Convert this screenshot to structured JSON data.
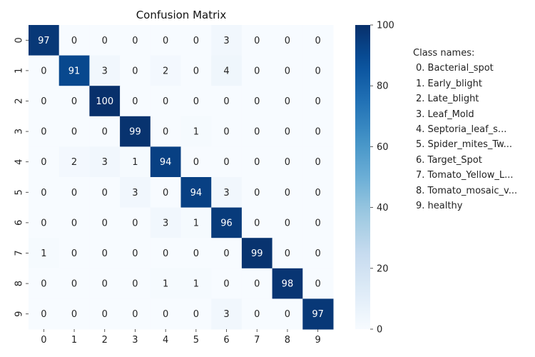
{
  "chart_data": {
    "type": "heatmap",
    "title": "Confusion Matrix",
    "xlabel": "",
    "ylabel": "",
    "x_tick_labels": [
      "0",
      "1",
      "2",
      "3",
      "4",
      "5",
      "6",
      "7",
      "8",
      "9"
    ],
    "y_tick_labels": [
      "0",
      "1",
      "2",
      "3",
      "4",
      "5",
      "6",
      "7",
      "8",
      "9"
    ],
    "matrix": [
      [
        97,
        0,
        0,
        0,
        0,
        0,
        3,
        0,
        0,
        0
      ],
      [
        0,
        91,
        3,
        0,
        2,
        0,
        4,
        0,
        0,
        0
      ],
      [
        0,
        0,
        100,
        0,
        0,
        0,
        0,
        0,
        0,
        0
      ],
      [
        0,
        0,
        0,
        99,
        0,
        1,
        0,
        0,
        0,
        0
      ],
      [
        0,
        2,
        3,
        1,
        94,
        0,
        0,
        0,
        0,
        0
      ],
      [
        0,
        0,
        0,
        3,
        0,
        94,
        3,
        0,
        0,
        0
      ],
      [
        0,
        0,
        0,
        0,
        3,
        1,
        96,
        0,
        0,
        0
      ],
      [
        1,
        0,
        0,
        0,
        0,
        0,
        0,
        99,
        0,
        0
      ],
      [
        0,
        0,
        0,
        0,
        1,
        1,
        0,
        0,
        98,
        0
      ],
      [
        0,
        0,
        0,
        0,
        0,
        0,
        3,
        0,
        0,
        97
      ]
    ],
    "colorbar": {
      "range": [
        0,
        100
      ],
      "ticks": [
        0,
        20,
        40,
        60,
        80,
        100
      ],
      "colormap": "Blues"
    },
    "class_names_title": "Class names:",
    "class_names": [
      "0. Bacterial_spot",
      "1. Early_blight",
      "2. Late_blight",
      "3. Leaf_Mold",
      "4. Septoria_leaf_s...",
      "5. Spider_mites_Tw...",
      "6. Target_Spot",
      "7. Tomato_Yellow_L...",
      "8. Tomato_mosaic_v...",
      "9. healthy"
    ]
  },
  "colors": {
    "low": "#f7fbff",
    "high": "#08306b",
    "text_dark": "#262626",
    "text_light": "#ffffff"
  }
}
